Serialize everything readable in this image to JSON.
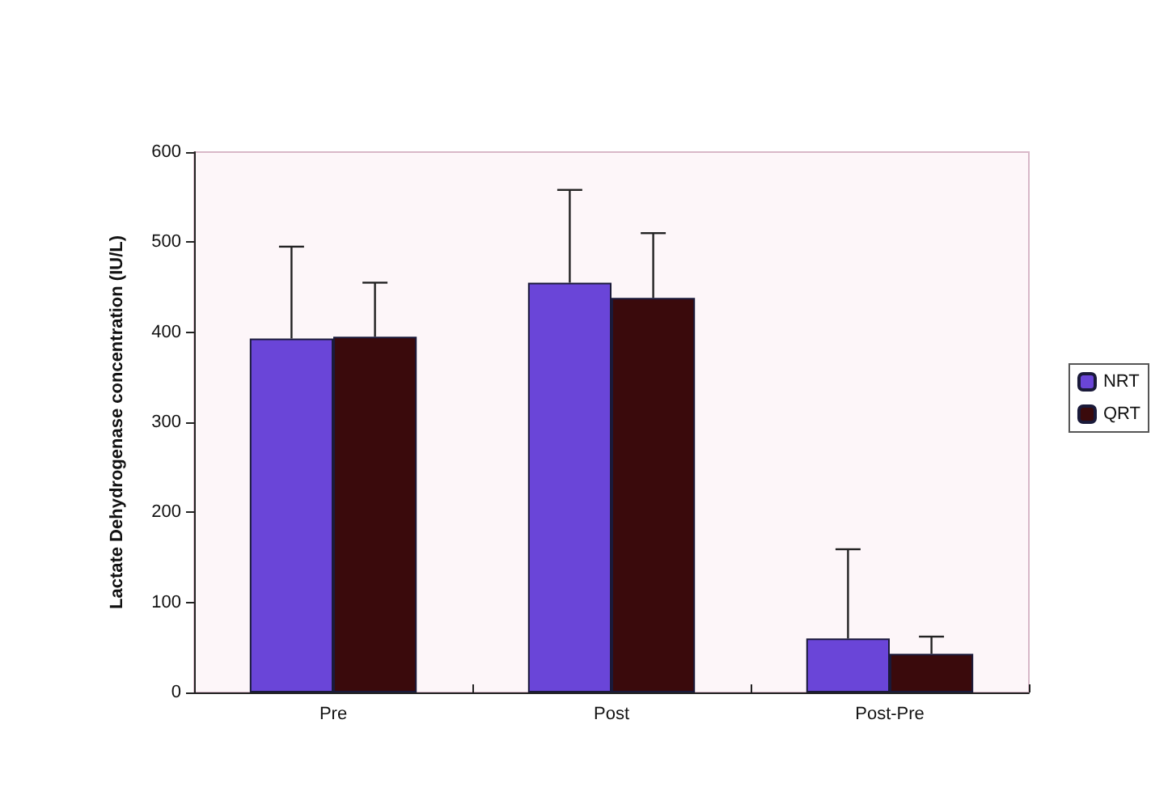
{
  "chart_data": {
    "type": "bar",
    "ylabel": "Lactate Dehydrogenase concentration (IU/L)",
    "categories": [
      "Pre",
      "Post",
      "Post-Pre"
    ],
    "series": [
      {
        "name": "NRT",
        "color": "#6a45d8",
        "values": [
          393,
          455,
          60
        ],
        "errors": [
          [
            393,
            495
          ],
          [
            455,
            558
          ],
          [
            60,
            159
          ]
        ]
      },
      {
        "name": "QRT",
        "color": "#3a0a0c",
        "values": [
          395,
          438,
          43
        ],
        "errors": [
          [
            395,
            455
          ],
          [
            438,
            510
          ],
          [
            43,
            62
          ]
        ]
      }
    ],
    "ylim": [
      0,
      600
    ],
    "yticks": [
      0,
      100,
      200,
      300,
      400,
      500,
      600
    ],
    "grid": false,
    "legend": "right"
  }
}
